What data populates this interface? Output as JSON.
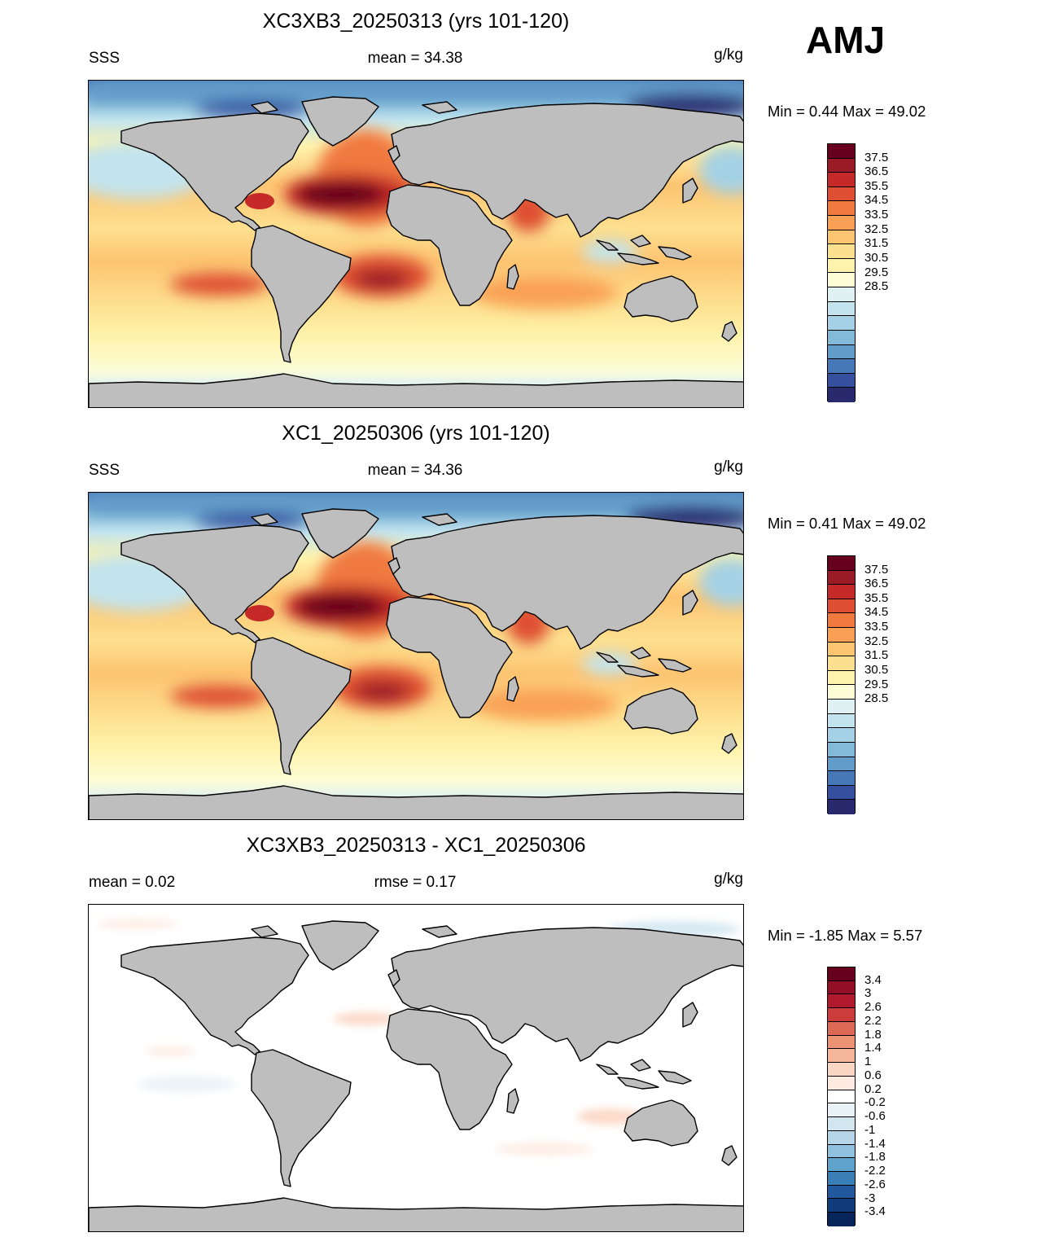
{
  "season": "AMJ",
  "panels": [
    {
      "id": "case1",
      "title": "XC3XB3_20250313 (yrs 101-120)",
      "left_label": "SSS",
      "center_label": "mean =  34.38",
      "units": "g/kg",
      "minmax": "Min =   0.44 Max =  49.02",
      "kind": "salinity"
    },
    {
      "id": "case2",
      "title": "XC1_20250306 (yrs 101-120)",
      "left_label": "SSS",
      "center_label": "mean =  34.36",
      "units": "g/kg",
      "minmax": "Min =   0.41 Max =  49.02",
      "kind": "salinity"
    },
    {
      "id": "diff",
      "title": "XC3XB3_20250313 - XC1_20250306",
      "left_label": "mean =   0.02",
      "center_label": "rmse =   0.17",
      "units": "g/kg",
      "minmax": "Min =  -1.85 Max =   5.57",
      "kind": "difference"
    }
  ],
  "salinity_colorbar": {
    "labels": [
      "37.5",
      "36.5",
      "35.5",
      "34.5",
      "33.5",
      "32.5",
      "31.5",
      "30.5",
      "29.5",
      "28.5"
    ],
    "colors": [
      "#67001f",
      "#9a1b25",
      "#c62a28",
      "#de4f33",
      "#f0793f",
      "#f9a055",
      "#fdc471",
      "#fde08f",
      "#fef3ac",
      "#fcfdd6",
      "#e0f1f3",
      "#c3e4ee",
      "#a4d1e5",
      "#83bad9",
      "#629ccb",
      "#4678b8",
      "#35509e",
      "#292a6e"
    ]
  },
  "difference_colorbar": {
    "labels": [
      "3.4",
      "3",
      "2.6",
      "2.2",
      "1.8",
      "1.4",
      "1",
      "0.6",
      "0.2",
      "-0.2",
      "-0.6",
      "-1",
      "-1.4",
      "-1.8",
      "-2.2",
      "-2.6",
      "-3",
      "-3.4"
    ],
    "colors": [
      "#67001f",
      "#930f26",
      "#b3192e",
      "#cb3c3a",
      "#dd6a56",
      "#ed9374",
      "#f6b69a",
      "#fbd6c3",
      "#fdebe1",
      "#ffffff",
      "#e9f2f7",
      "#d2e6f0",
      "#b5d5e8",
      "#8fc0dd",
      "#5fa2cb",
      "#3a7eb6",
      "#21589e",
      "#103d79",
      "#07255a"
    ]
  },
  "map_colors": {
    "land": "#bebebe",
    "coast": "#000000",
    "diff_background": "#ffffff"
  }
}
